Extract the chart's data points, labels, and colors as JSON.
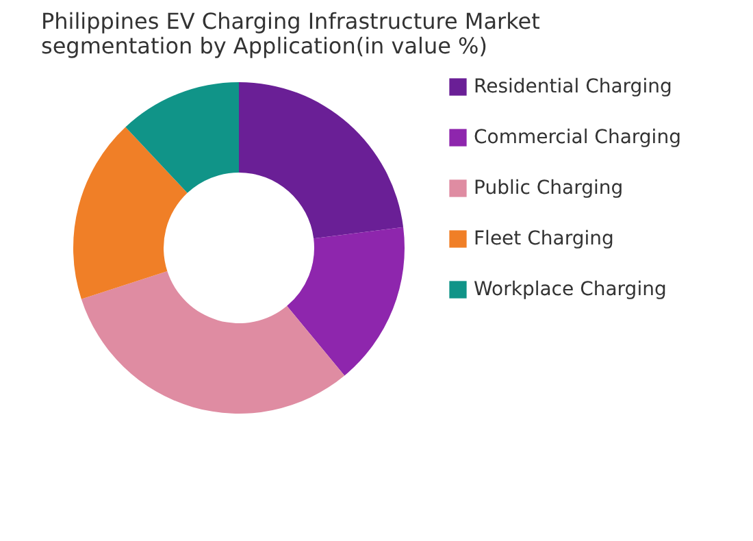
{
  "chart_data": {
    "type": "donut",
    "title": [
      "Philippines EV Charging Infrastructure Market",
      "segmentation by Application(in value %)"
    ],
    "categories": [
      "Residential Charging",
      "Commercial Charging",
      "Public Charging",
      "Fleet Charging",
      "Workplace Charging"
    ],
    "values": [
      23,
      16,
      31,
      18,
      12
    ],
    "colors": [
      "#6a1f96",
      "#8e26ad",
      "#df8ca2",
      "#f07f27",
      "#109488"
    ],
    "legend": "right"
  }
}
